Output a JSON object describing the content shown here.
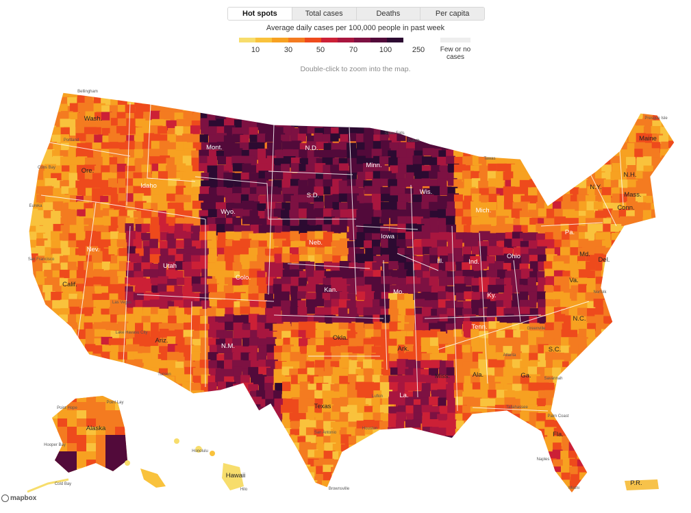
{
  "tabs": [
    {
      "label": "Hot spots",
      "active": true
    },
    {
      "label": "Total cases",
      "active": false
    },
    {
      "label": "Deaths",
      "active": false
    },
    {
      "label": "Per capita",
      "active": false
    }
  ],
  "legend": {
    "title": "Average daily cases per 100,000 people in past week",
    "colors": [
      "#f7dd6c",
      "#f9c23c",
      "#f7a121",
      "#f47b20",
      "#ee4a1c",
      "#cc2036",
      "#a8163f",
      "#7d1142",
      "#520a3a",
      "#2c0a31",
      "#eeeeee"
    ],
    "ticks": [
      "10",
      "30",
      "50",
      "70",
      "100",
      "250"
    ],
    "few_label": "Few or no cases"
  },
  "hint": "Double-click to zoom into the map.",
  "attribution": "mapbox",
  "state_labels": [
    "Wash.",
    "Mont.",
    "N.D.",
    "Minn.",
    "Maine",
    "Ore.",
    "Idaho",
    "S.D.",
    "Wis.",
    "N.Y.",
    "N.H.",
    "Mass.",
    "Conn.",
    "Mich.",
    "Wyo.",
    "Iowa",
    "Neb.",
    "Pa.",
    "Nev.",
    "Utah",
    "Ill.",
    "Ind.",
    "Ohio",
    "Md.",
    "Del.",
    "Calif.",
    "Colo.",
    "Kan.",
    "Mo.",
    "Va.",
    "Ky.",
    "N.C.",
    "Tenn.",
    "Okla.",
    "Ariz.",
    "N.M.",
    "Ark.",
    "S.C.",
    "Ala.",
    "Ga.",
    "Miss.",
    "Texas",
    "La.",
    "Fla.",
    "Alaska",
    "Hawaii",
    "P.R."
  ],
  "city_labels": [
    "Bellingham",
    "Portland",
    "Coos Bay",
    "Eureka",
    "San Francisco",
    "Las Vegas",
    "Lake Havasu City",
    "Tucson",
    "Sioux Falls",
    "Duluth",
    "Tawas",
    "Presque Isle",
    "Norfolk",
    "Greenville",
    "Atlanta",
    "Savannah",
    "Tallahassee",
    "Palm Coast",
    "Miami",
    "Naples",
    "San Antonio",
    "Houston",
    "Brownsville",
    "Lufkin",
    "Honolulu",
    "Hilo",
    "Point Hope",
    "Point Lay",
    "Hooper Bay",
    "Cold Bay"
  ]
}
